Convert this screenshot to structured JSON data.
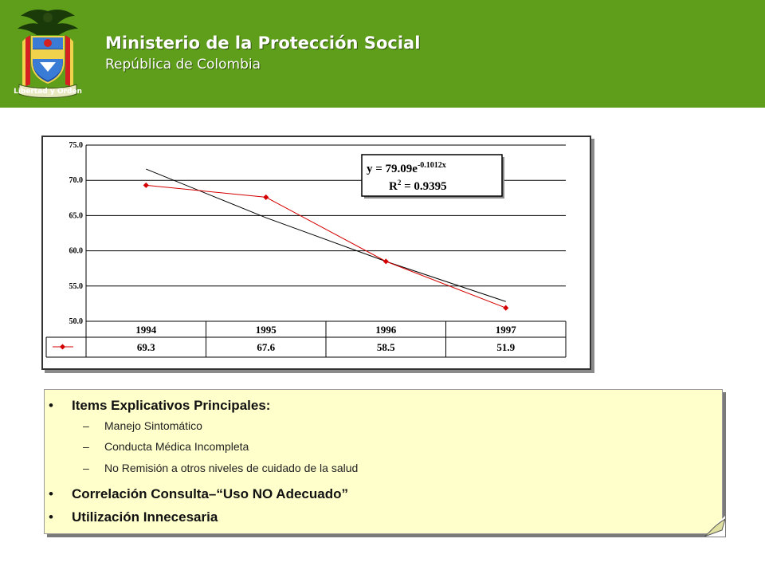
{
  "header": {
    "title": "Ministerio de la Protección Social",
    "subtitle": "República de Colombia",
    "motto": "Libertad y Orden",
    "background_color": "#5f9e1b"
  },
  "chart_data": {
    "type": "line",
    "y_ticks": [
      "75.0",
      "70.0",
      "65.0",
      "60.0",
      "55.0",
      "50.0"
    ],
    "ylim": [
      50,
      75
    ],
    "categories": [
      "1994",
      "1995",
      "1996",
      "1997"
    ],
    "series": [
      {
        "values": [
          69.3,
          67.6,
          58.5,
          51.9
        ],
        "color": "#d40000"
      }
    ],
    "trendline": {
      "values": [
        71.6,
        64.7,
        58.5,
        52.8
      ],
      "color": "#000000"
    },
    "table_values": [
      "69.3",
      "67.6",
      "58.5",
      "51.9"
    ],
    "equation": {
      "lhs": "y = 79.09e",
      "exponent": "-0.1012x",
      "r2_label": "R",
      "r2_sup": "2",
      "r2_value": " = 0.9395"
    },
    "grid": true
  },
  "notes": {
    "items": [
      {
        "bullet": "•",
        "text": "Items Explicativos Principales:",
        "subitems": [
          {
            "dash": "–",
            "text": "Manejo Sintomático"
          },
          {
            "dash": "–",
            "text": "Conducta Médica Incompleta"
          },
          {
            "dash": "–",
            "text": "No Remisión a otros niveles de cuidado de la salud"
          }
        ]
      },
      {
        "bullet": "•",
        "text": "Correlación Consulta–“Uso NO Adecuado”"
      },
      {
        "bullet": "•",
        "text": "Utilización Innecesaria"
      }
    ],
    "background_color": "#ffffcc"
  }
}
